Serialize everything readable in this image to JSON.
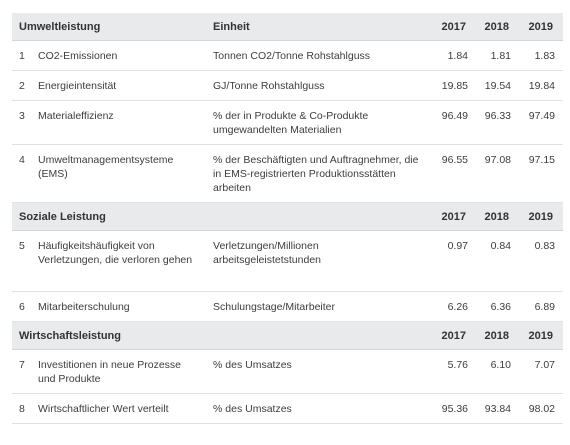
{
  "sections": [
    {
      "title": "Umweltleistung",
      "unit_header": "Einheit",
      "years": [
        "2017",
        "2018",
        "2019"
      ],
      "rows": [
        {
          "num": "1",
          "name": "CO2-Emissionen",
          "unit": "Tonnen CO2/Tonne Rohstahlguss",
          "v2017": "1.84",
          "v2018": "1.81",
          "v2019": "1.83"
        },
        {
          "num": "2",
          "name": "Energieintensität",
          "unit": "GJ/Tonne Rohstahlguss",
          "v2017": "19.85",
          "v2018": "19.54",
          "v2019": "19.84"
        },
        {
          "num": "3",
          "name": "Materialeffizienz",
          "unit": "% der in Produkte & Co-Produkte umgewandelten Materialien",
          "v2017": "96.49",
          "v2018": "96.33",
          "v2019": "97.49"
        },
        {
          "num": "4",
          "name": "Umweltmanagementsysteme (EMS)",
          "unit": "% der Beschäftigten und Auftragnehmer, die in EMS-registrierten Produktionsstätten arbeiten",
          "v2017": "96.55",
          "v2018": "97.08",
          "v2019": "97.15"
        }
      ]
    },
    {
      "title": "Soziale Leistung",
      "years": [
        "2017",
        "2018",
        "2019"
      ],
      "rows": [
        {
          "num": "5",
          "name": "Häufigkeitshäufigkeit von Verletzungen, die verloren gehen",
          "unit": "Verletzungen/Millionen arbeitsgeleistetstunden",
          "v2017": "0.97",
          "v2018": "0.84",
          "v2019": "0.83"
        },
        {
          "num": "6",
          "name": "Mitarbeiterschulung",
          "unit": "Schulungstage/Mitarbeiter",
          "v2017": "6.26",
          "v2018": "6.36",
          "v2019": "6.89"
        }
      ]
    },
    {
      "title": "Wirtschaftsleistung",
      "years": [
        "2017",
        "2018",
        "2019"
      ],
      "rows": [
        {
          "num": "7",
          "name": "Investitionen in neue Prozesse und Produkte",
          "unit": "% des Umsatzes",
          "v2017": "5.76",
          "v2018": "6.10",
          "v2019": "7.07"
        },
        {
          "num": "8",
          "name": "Wirtschaftlicher Wert verteilt",
          "unit": "% des Umsatzes",
          "v2017": "95.36",
          "v2018": "93.84",
          "v2019": "98.02"
        }
      ]
    }
  ]
}
